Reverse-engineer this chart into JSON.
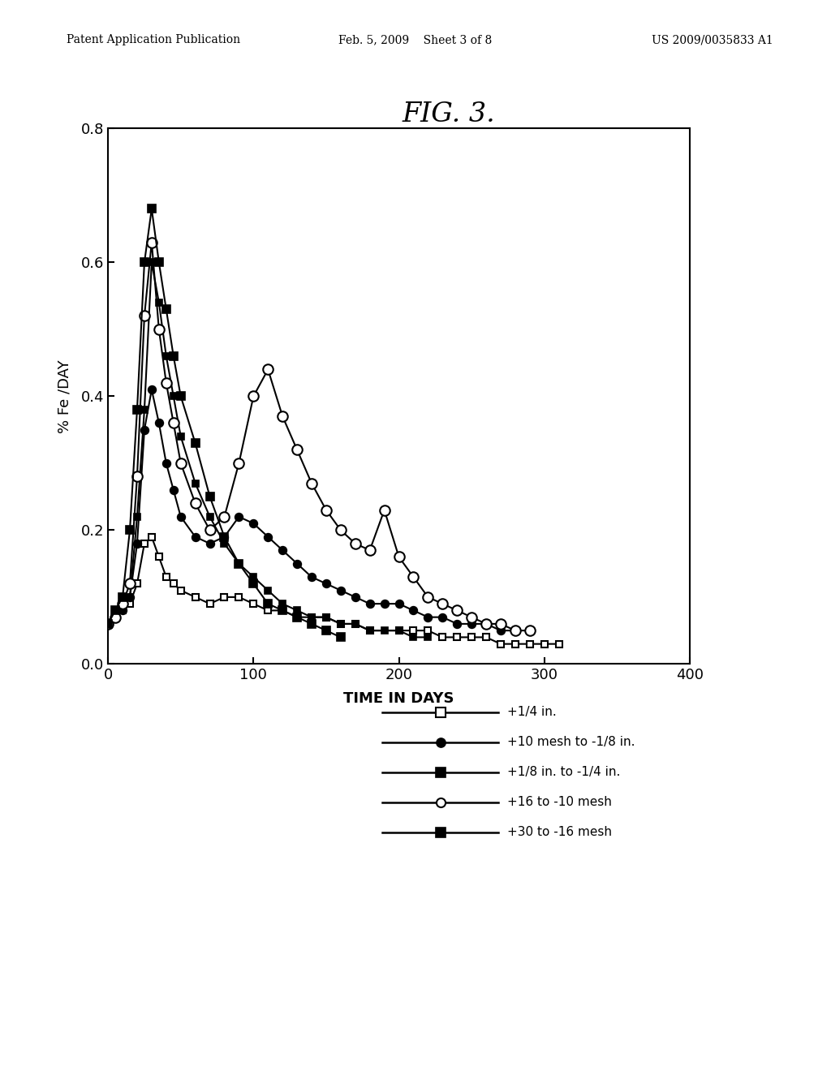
{
  "title": "FIG. 3.",
  "xlabel": "TIME IN DAYS",
  "ylabel": "% Fe /DAY",
  "xlim": [
    0,
    400
  ],
  "ylim": [
    0.0,
    0.8
  ],
  "xticks": [
    0,
    100,
    200,
    300,
    400
  ],
  "yticks": [
    0.0,
    0.2,
    0.4,
    0.6,
    0.8
  ],
  "background_color": "#ffffff",
  "series": [
    {
      "key": "plus_quarter_in",
      "label": "+1/4 in.",
      "marker": "s",
      "filled": false,
      "markersize": 6,
      "x": [
        0,
        5,
        10,
        15,
        20,
        25,
        30,
        35,
        40,
        45,
        50,
        60,
        70,
        80,
        90,
        100,
        110,
        120,
        130,
        140,
        150,
        160,
        170,
        180,
        200,
        210,
        220,
        230,
        240,
        250,
        260,
        270,
        280,
        290,
        300,
        310
      ],
      "y": [
        0.06,
        0.07,
        0.08,
        0.09,
        0.12,
        0.18,
        0.19,
        0.16,
        0.13,
        0.12,
        0.11,
        0.1,
        0.09,
        0.1,
        0.1,
        0.09,
        0.08,
        0.08,
        0.07,
        0.07,
        0.07,
        0.06,
        0.06,
        0.05,
        0.05,
        0.05,
        0.05,
        0.04,
        0.04,
        0.04,
        0.04,
        0.03,
        0.03,
        0.03,
        0.03,
        0.03
      ]
    },
    {
      "key": "plus_10_mesh",
      "label": "+10 mesh to -1/8 in.",
      "marker": "o",
      "filled": true,
      "markersize": 7,
      "x": [
        0,
        5,
        10,
        15,
        20,
        25,
        30,
        35,
        40,
        45,
        50,
        60,
        70,
        80,
        90,
        100,
        110,
        120,
        130,
        140,
        150,
        160,
        170,
        180,
        190,
        200,
        210,
        220,
        230,
        240,
        250,
        260,
        270,
        280
      ],
      "y": [
        0.06,
        0.07,
        0.08,
        0.1,
        0.18,
        0.35,
        0.41,
        0.36,
        0.3,
        0.26,
        0.22,
        0.19,
        0.18,
        0.19,
        0.22,
        0.21,
        0.19,
        0.17,
        0.15,
        0.13,
        0.12,
        0.11,
        0.1,
        0.09,
        0.09,
        0.09,
        0.08,
        0.07,
        0.07,
        0.06,
        0.06,
        0.06,
        0.05,
        0.05
      ]
    },
    {
      "key": "plus_eighth_in",
      "label": "+1/8 in. to -1/4 in.",
      "marker": "s",
      "filled": true,
      "markersize": 6,
      "x": [
        0,
        5,
        10,
        15,
        20,
        25,
        30,
        35,
        40,
        45,
        50,
        60,
        70,
        80,
        90,
        100,
        110,
        120,
        130,
        140,
        150,
        160,
        170,
        180,
        190,
        200,
        210,
        220
      ],
      "y": [
        0.06,
        0.07,
        0.08,
        0.1,
        0.22,
        0.38,
        0.6,
        0.54,
        0.46,
        0.4,
        0.34,
        0.27,
        0.22,
        0.18,
        0.15,
        0.13,
        0.11,
        0.09,
        0.08,
        0.07,
        0.07,
        0.06,
        0.06,
        0.05,
        0.05,
        0.05,
        0.04,
        0.04
      ]
    },
    {
      "key": "plus_16_mesh",
      "label": "+16 to -10 mesh",
      "marker": "o",
      "filled": false,
      "markersize": 9,
      "x": [
        0,
        5,
        10,
        15,
        20,
        25,
        30,
        35,
        40,
        45,
        50,
        60,
        70,
        80,
        90,
        100,
        110,
        120,
        130,
        140,
        150,
        160,
        170,
        180,
        190,
        200,
        210,
        220,
        230,
        240,
        250,
        260,
        270,
        280,
        290
      ],
      "y": [
        0.06,
        0.07,
        0.09,
        0.12,
        0.28,
        0.52,
        0.63,
        0.5,
        0.42,
        0.36,
        0.3,
        0.24,
        0.2,
        0.22,
        0.3,
        0.4,
        0.44,
        0.37,
        0.32,
        0.27,
        0.23,
        0.2,
        0.18,
        0.17,
        0.23,
        0.16,
        0.13,
        0.1,
        0.09,
        0.08,
        0.07,
        0.06,
        0.06,
        0.05,
        0.05
      ]
    },
    {
      "key": "plus_30_mesh",
      "label": "+30 to -16 mesh",
      "marker": "s",
      "filled": true,
      "markersize": 7,
      "x": [
        0,
        5,
        10,
        15,
        20,
        25,
        30,
        35,
        40,
        45,
        50,
        60,
        70,
        80,
        90,
        100,
        110,
        120,
        130,
        140,
        150,
        160
      ],
      "y": [
        0.06,
        0.08,
        0.1,
        0.2,
        0.38,
        0.6,
        0.68,
        0.6,
        0.53,
        0.46,
        0.4,
        0.33,
        0.25,
        0.19,
        0.15,
        0.12,
        0.09,
        0.08,
        0.07,
        0.06,
        0.05,
        0.04
      ]
    }
  ],
  "header_left": "Patent Application Publication",
  "header_center": "Feb. 5, 2009    Sheet 3 of 8",
  "header_right": "US 2009/0035833 A1"
}
